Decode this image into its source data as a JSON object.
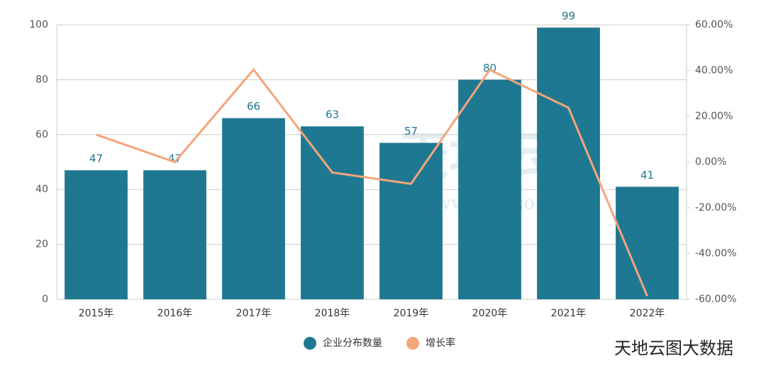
{
  "chart_data": {
    "type": "bar",
    "categories": [
      "2015年",
      "2016年",
      "2017年",
      "2018年",
      "2019年",
      "2020年",
      "2021年",
      "2022年"
    ],
    "series": [
      {
        "name": "企业分布数量",
        "type": "bar",
        "color": "#1f7892",
        "values": [
          47,
          47,
          66,
          63,
          57,
          80,
          99,
          41
        ]
      },
      {
        "name": "增长率",
        "type": "line",
        "axis": "y2",
        "color": "#f4a57a",
        "values": [
          12,
          0,
          40.43,
          -4.55,
          -9.52,
          40.35,
          23.75,
          -58.59
        ]
      }
    ],
    "ylim": [
      0,
      100
    ],
    "yticks": [
      0,
      20,
      40,
      60,
      80,
      100
    ],
    "y2lim": [
      -60,
      60
    ],
    "y2ticks": [
      {
        "value": -60,
        "label": "-60.00%"
      },
      {
        "value": -40,
        "label": "-40.00%"
      },
      {
        "value": -20,
        "label": "-20.00%"
      },
      {
        "value": 0,
        "label": "0.00%"
      },
      {
        "value": 20,
        "label": "20.00%"
      },
      {
        "value": 40,
        "label": "40.00%"
      },
      {
        "value": 60,
        "label": "60.00%"
      }
    ],
    "grid": true,
    "legend": "bottom",
    "annotations": [
      "天地云图",
      "www.tdyt.com.cn",
      "天地云图大数据"
    ]
  }
}
